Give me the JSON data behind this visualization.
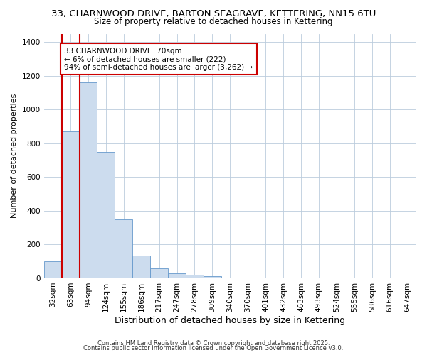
{
  "title": "33, CHARNWOOD DRIVE, BARTON SEAGRAVE, KETTERING, NN15 6TU",
  "subtitle": "Size of property relative to detached houses in Kettering",
  "xlabel": "Distribution of detached houses by size in Kettering",
  "ylabel": "Number of detached properties",
  "categories": [
    "32sqm",
    "63sqm",
    "94sqm",
    "124sqm",
    "155sqm",
    "186sqm",
    "217sqm",
    "247sqm",
    "278sqm",
    "309sqm",
    "340sqm",
    "370sqm",
    "401sqm",
    "432sqm",
    "463sqm",
    "493sqm",
    "524sqm",
    "555sqm",
    "586sqm",
    "616sqm",
    "647sqm"
  ],
  "values": [
    100,
    870,
    1160,
    750,
    350,
    135,
    60,
    30,
    20,
    12,
    5,
    2,
    0,
    0,
    0,
    0,
    0,
    0,
    0,
    0,
    0
  ],
  "bar_color": "#ccdcee",
  "bar_edge_color": "#6699cc",
  "annotation_text": "33 CHARNWOOD DRIVE: 70sqm\n← 6% of detached houses are smaller (222)\n94% of semi-detached houses are larger (3,262) →",
  "annotation_box_color": "#ffffff",
  "annotation_border_color": "#cc0000",
  "vline_color": "#cc0000",
  "vline_index": 1,
  "ylim": [
    0,
    1450
  ],
  "yticks": [
    0,
    200,
    400,
    600,
    800,
    1000,
    1200,
    1400
  ],
  "background_color": "#ffffff",
  "plot_bg_color": "#ffffff",
  "grid_color": "#bbccdd",
  "footer_line1": "Contains HM Land Registry data © Crown copyright and database right 2025.",
  "footer_line2": "Contains public sector information licensed under the Open Government Licence v3.0.",
  "title_fontsize": 9.5,
  "subtitle_fontsize": 8.5,
  "xlabel_fontsize": 9,
  "ylabel_fontsize": 8,
  "tick_fontsize": 7.5,
  "footer_fontsize": 6
}
